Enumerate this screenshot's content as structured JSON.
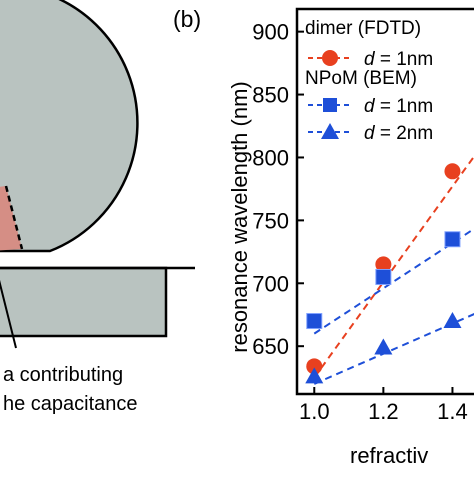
{
  "panel_a": {
    "caption_lines": [
      "a contributing",
      "he capacitance"
    ]
  },
  "colors": {
    "sphere": "#b9c3c0",
    "gap_region": "#d58e85",
    "substrate": "#b9c3c0",
    "dimer": "#e8401f",
    "npom": "#1e4fd8"
  },
  "chart_data": {
    "type": "line",
    "panel_label": "(b)",
    "ylabel": "resonance wavelength (nm)",
    "xlabel": "refractiv",
    "xlim": [
      0.95,
      1.5
    ],
    "ylim": [
      612,
      918
    ],
    "x_ticks": [
      1.0,
      1.2,
      1.4
    ],
    "x_tick_labels": [
      "1.0",
      "1.2",
      "1.4"
    ],
    "y_ticks": [
      650,
      700,
      750,
      800,
      850,
      900
    ],
    "y_tick_labels": [
      "650",
      "700",
      "750",
      "800",
      "850",
      "900"
    ],
    "legend": {
      "group1_title": "dimer (FDTD)",
      "group2_title": "NPoM (BEM)",
      "d_symbol": "d",
      "entries": [
        {
          "label": "= 1nm"
        },
        {
          "label": "= 1nm"
        },
        {
          "label": "= 2nm"
        }
      ]
    },
    "series": [
      {
        "marker": "circle",
        "color": "#e8401f",
        "x": [
          1.0,
          1.2,
          1.4
        ],
        "y": [
          634,
          715,
          789
        ],
        "fit_x": [
          1.0,
          1.5
        ],
        "fit_y": [
          625,
          815
        ]
      },
      {
        "marker": "square",
        "color": "#1e4fd8",
        "x": [
          1.0,
          1.2,
          1.4
        ],
        "y": [
          670,
          705,
          735
        ],
        "fit_x": [
          1.0,
          1.5
        ],
        "fit_y": [
          660,
          750
        ]
      },
      {
        "marker": "triangle",
        "color": "#1e4fd8",
        "x": [
          1.0,
          1.2,
          1.4
        ],
        "y": [
          626,
          649,
          670
        ],
        "fit_x": [
          1.0,
          1.5
        ],
        "fit_y": [
          620,
          680
        ]
      }
    ]
  }
}
